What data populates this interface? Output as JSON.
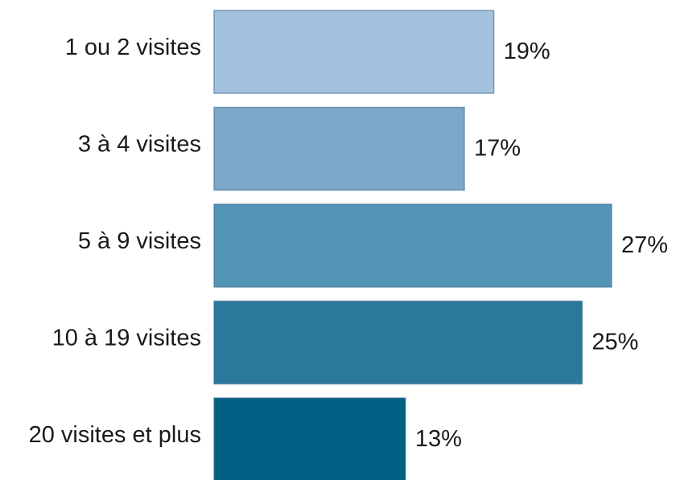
{
  "chart_data": {
    "type": "barh",
    "categories": [
      "1 ou 2 visites",
      "3 à 4 visites",
      "5 à 9 visites",
      "10 à 19 visites",
      "20 visites et plus"
    ],
    "values": [
      19,
      17,
      27,
      25,
      13
    ],
    "value_labels": [
      "19%",
      "17%",
      "27%",
      "25%",
      "13%"
    ],
    "colors": [
      "#a4c1de",
      "#7ba8c9",
      "#5494b7",
      "#2a789c",
      "#006185"
    ]
  }
}
